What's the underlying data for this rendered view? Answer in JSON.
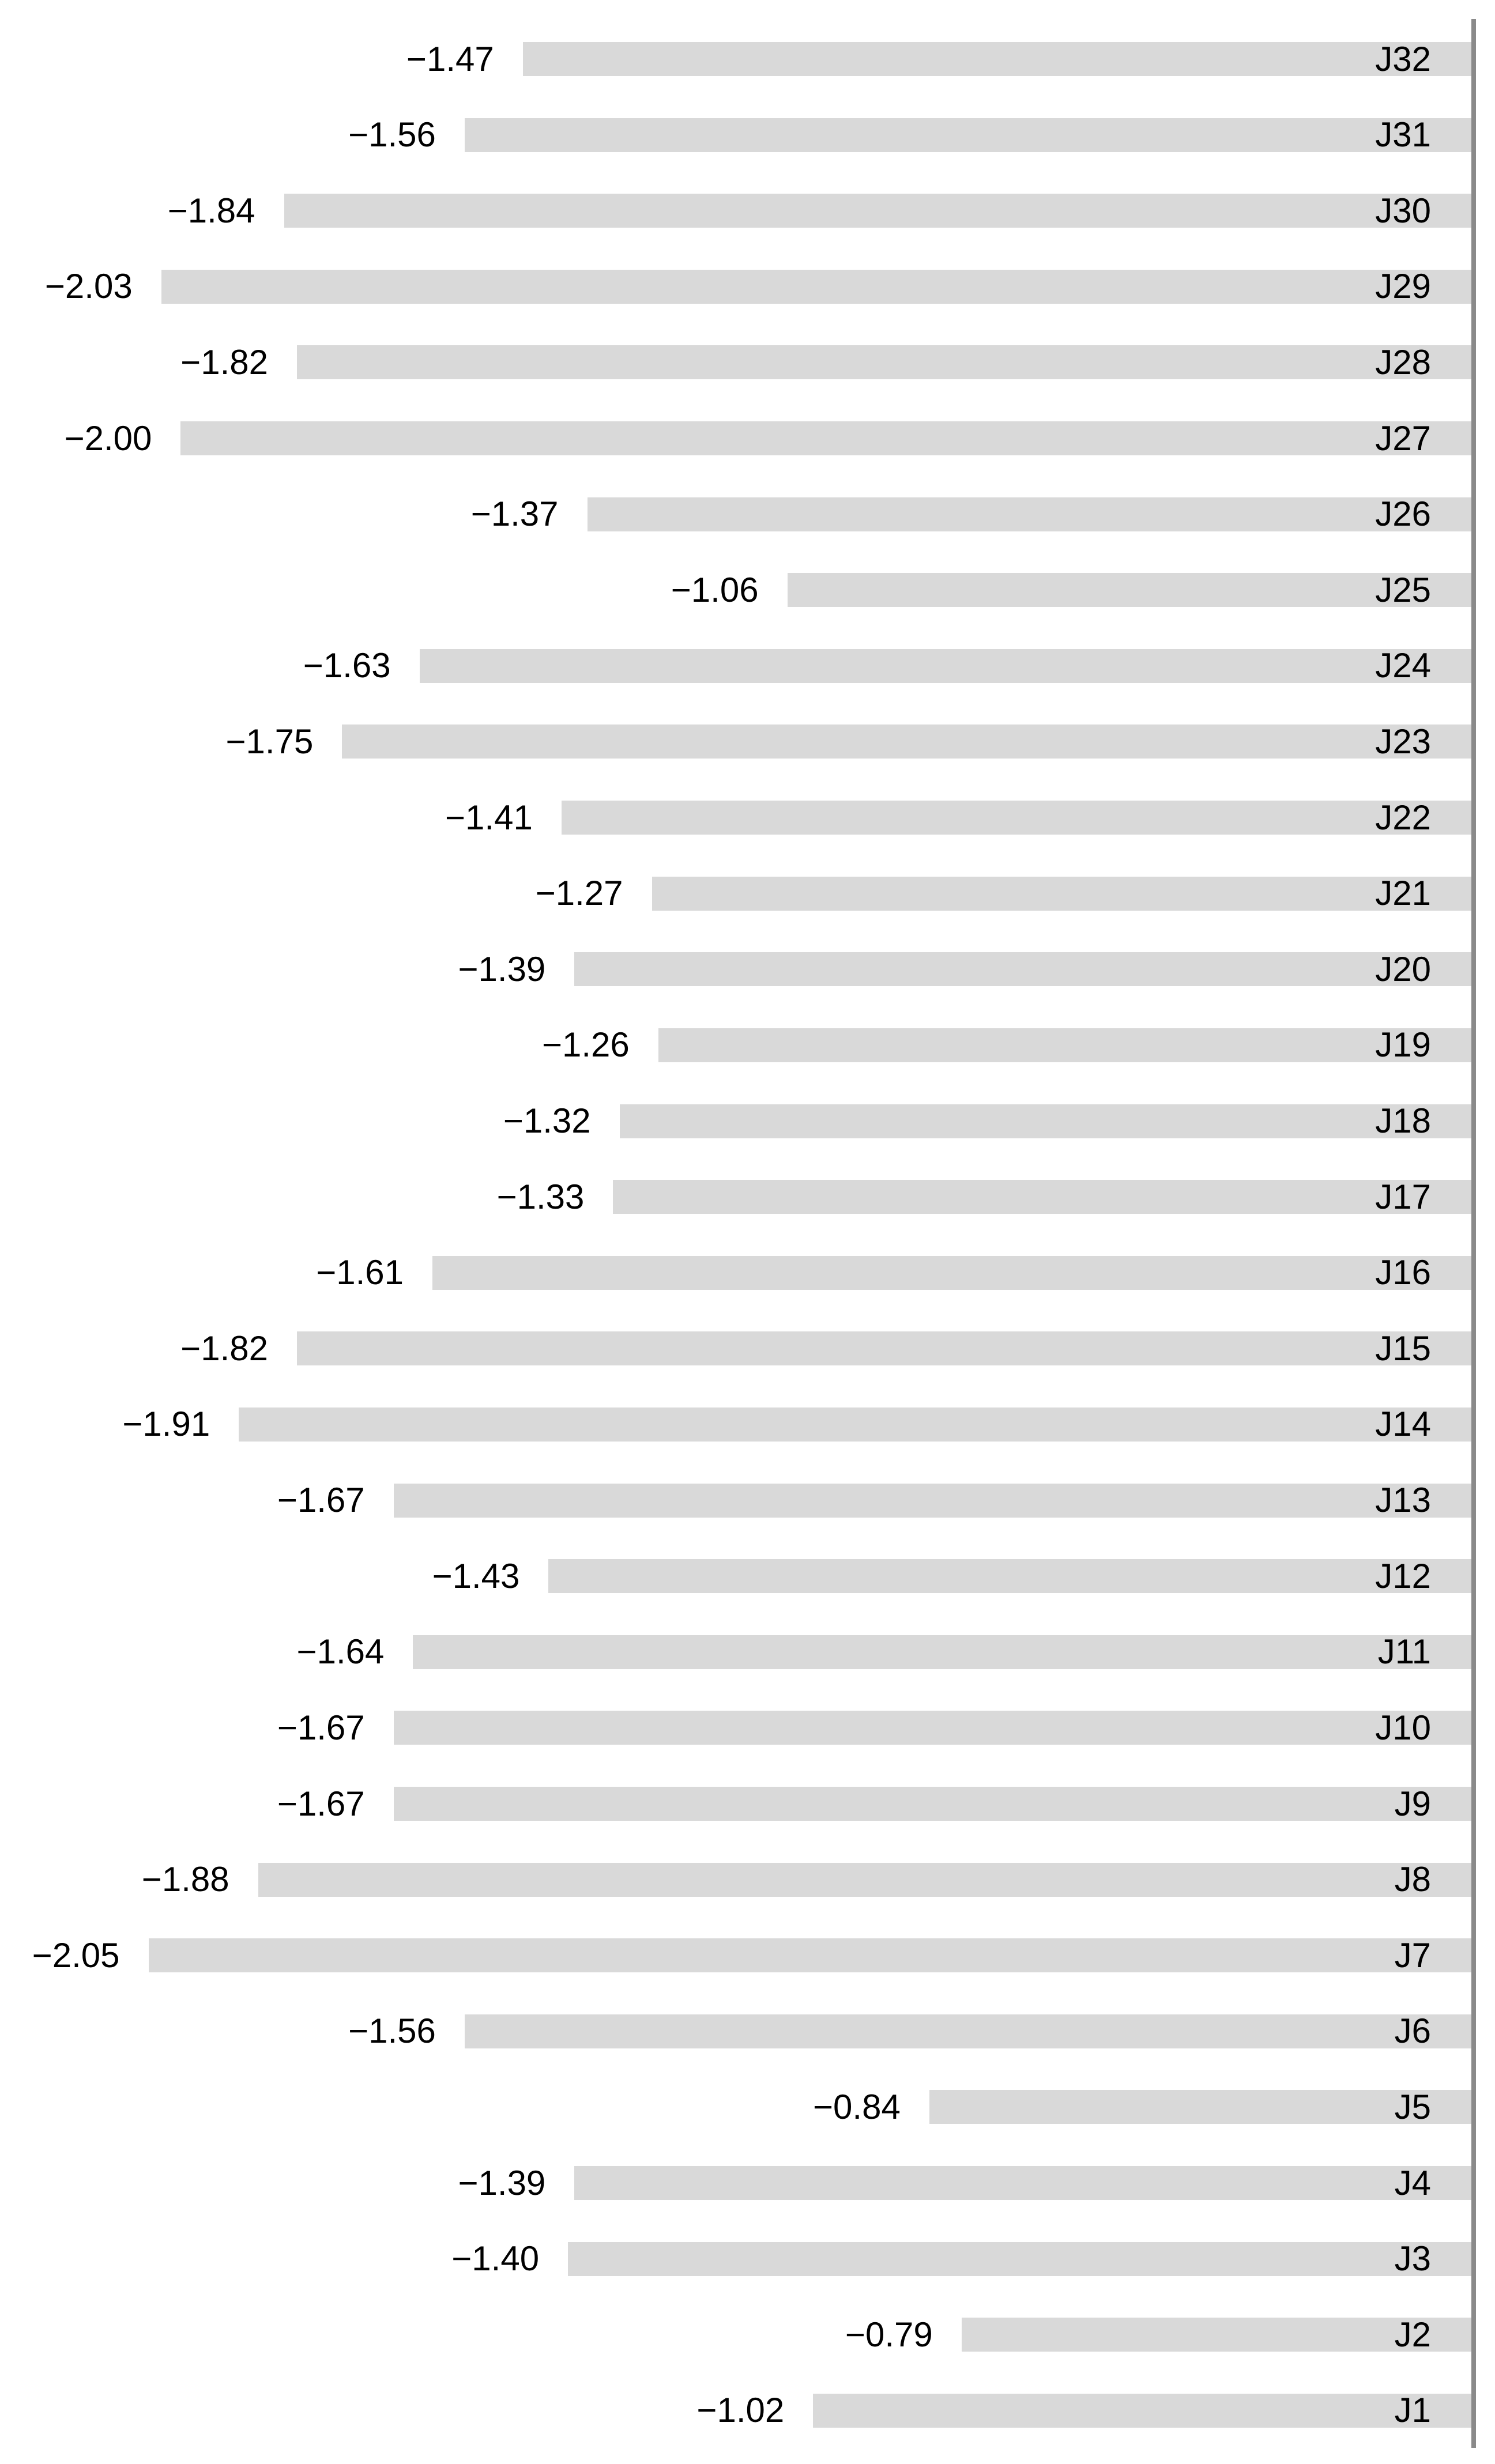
{
  "chart_data": {
    "type": "bar",
    "orientation": "horizontal",
    "title": "",
    "xlabel": "",
    "ylabel": "",
    "categories": [
      "J32",
      "J31",
      "J30",
      "J29",
      "J28",
      "J27",
      "J26",
      "J25",
      "J24",
      "J23",
      "J22",
      "J21",
      "J20",
      "J19",
      "J18",
      "J17",
      "J16",
      "J15",
      "J14",
      "J13",
      "J12",
      "J11",
      "J10",
      "J9",
      "J8",
      "J7",
      "J6",
      "J5",
      "J4",
      "J3",
      "J2",
      "J1"
    ],
    "values": [
      -1.47,
      -1.56,
      -1.84,
      -2.03,
      -1.82,
      -2.0,
      -1.37,
      -1.06,
      -1.63,
      -1.75,
      -1.41,
      -1.27,
      -1.39,
      -1.26,
      -1.32,
      -1.33,
      -1.61,
      -1.82,
      -1.91,
      -1.67,
      -1.43,
      -1.64,
      -1.67,
      -1.67,
      -1.88,
      -2.05,
      -1.56,
      -0.84,
      -1.39,
      -1.4,
      -0.79,
      -1.02
    ],
    "value_labels": [
      "−1.47",
      "−1.56",
      "−1.84",
      "−2.03",
      "−1.82",
      "−2.00",
      "−1.37",
      "−1.06",
      "−1.63",
      "−1.75",
      "−1.41",
      "−1.27",
      "−1.39",
      "−1.26",
      "−1.32",
      "−1.33",
      "−1.61",
      "−1.82",
      "−1.91",
      "−1.67",
      "−1.43",
      "−1.64",
      "−1.67",
      "−1.67",
      "−1.88",
      "−2.05",
      "−1.56",
      "−0.84",
      "−1.39",
      "−1.40",
      "−0.79",
      "−1.02"
    ],
    "xlim": [
      -2.28,
      0
    ],
    "value_axis_side": "right",
    "bars_extend": "left",
    "grid": false,
    "legend": false,
    "data_labels": "outside-end",
    "colors": {
      "bar": "#D9D9D9",
      "axis_line": "#8A8A8A",
      "text": "#000000",
      "background": "#FFFFFF"
    }
  }
}
